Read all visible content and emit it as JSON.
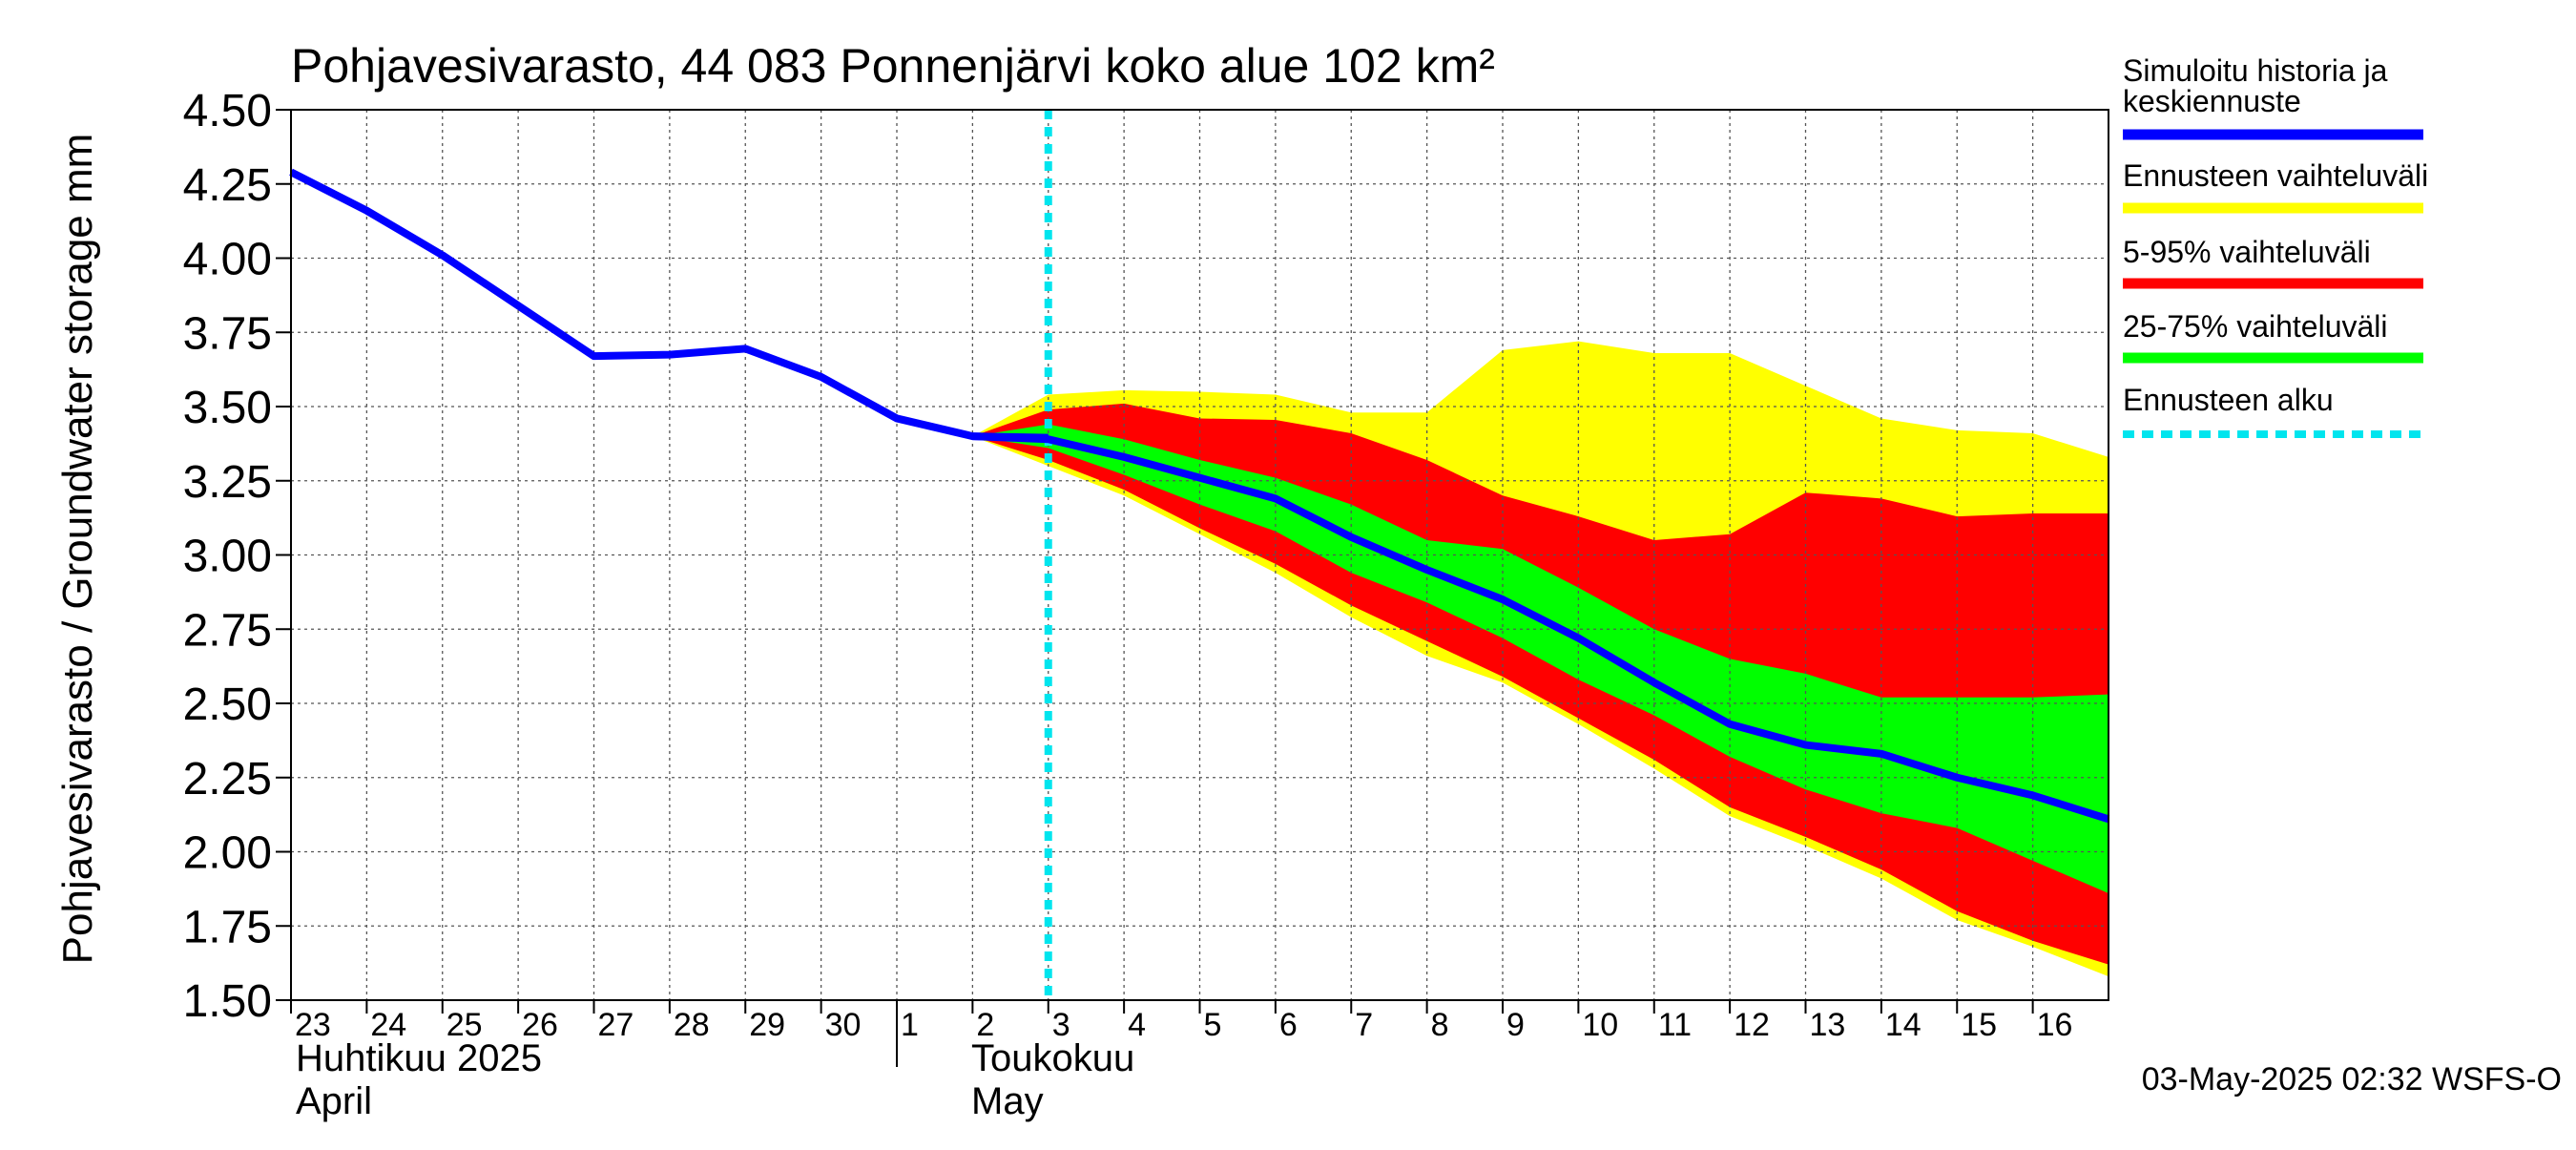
{
  "chart_data": {
    "type": "area",
    "title": "Pohjavesivarasto, 44 083 Ponnenjärvi koko alue 102 km²",
    "ylabel": "Pohjavesivarasto / Groundwater storage   mm",
    "ylim": [
      1.5,
      4.5
    ],
    "yticks": [
      "4.50",
      "4.25",
      "4.00",
      "3.75",
      "3.50",
      "3.25",
      "3.00",
      "2.75",
      "2.50",
      "2.25",
      "2.00",
      "1.75",
      "1.50"
    ],
    "xlim": [
      0,
      24
    ],
    "xticks": [
      "23",
      "24",
      "25",
      "26",
      "27",
      "28",
      "29",
      "30",
      "1",
      "2",
      "3",
      "4",
      "5",
      "6",
      "7",
      "8",
      "9",
      "10",
      "11",
      "12",
      "13",
      "14",
      "15",
      "16"
    ],
    "month_labels": [
      {
        "fi": "Huhtikuu  2025",
        "en": "April"
      },
      {
        "fi": "Toukokuu",
        "en": "May"
      }
    ],
    "forecast_start_day": 10,
    "x_days": [
      9,
      10,
      11,
      12,
      13,
      14,
      15,
      16,
      17,
      18,
      19,
      20,
      21,
      22,
      23,
      24
    ],
    "history": {
      "x": [
        0,
        1,
        2,
        3,
        4,
        5,
        6,
        7,
        8,
        9,
        10
      ],
      "y": [
        4.29,
        4.16,
        4.01,
        3.84,
        3.67,
        3.675,
        3.695,
        3.6,
        3.46,
        3.4,
        3.395
      ]
    },
    "series": [
      {
        "name": "Ennusteen vaihteluväli",
        "color": "#ffff00",
        "upper": [
          3.4,
          3.54,
          3.555,
          3.55,
          3.54,
          3.48,
          3.48,
          3.69,
          3.72,
          3.68,
          3.68,
          3.57,
          3.46,
          3.42,
          3.41,
          3.33
        ],
        "lower": [
          3.4,
          3.3,
          3.2,
          3.07,
          2.94,
          2.79,
          2.66,
          2.57,
          2.43,
          2.28,
          2.12,
          2.02,
          1.91,
          1.77,
          1.68,
          1.58
        ]
      },
      {
        "name": "5-95% vaihteluväli",
        "color": "#ff0000",
        "upper": [
          3.4,
          3.49,
          3.51,
          3.46,
          3.455,
          3.41,
          3.32,
          3.2,
          3.13,
          3.05,
          3.07,
          3.21,
          3.19,
          3.13,
          3.14,
          3.14
        ],
        "lower": [
          3.4,
          3.32,
          3.22,
          3.09,
          2.97,
          2.83,
          2.71,
          2.59,
          2.45,
          2.31,
          2.15,
          2.05,
          1.94,
          1.8,
          1.7,
          1.62
        ]
      },
      {
        "name": "25-75% vaihteluväli",
        "color": "#00ff00",
        "upper": [
          3.4,
          3.44,
          3.39,
          3.32,
          3.26,
          3.17,
          3.05,
          3.02,
          2.89,
          2.75,
          2.65,
          2.6,
          2.52,
          2.52,
          2.52,
          2.53
        ],
        "lower": [
          3.4,
          3.36,
          3.27,
          3.17,
          3.08,
          2.94,
          2.84,
          2.72,
          2.58,
          2.46,
          2.32,
          2.21,
          2.13,
          2.08,
          1.97,
          1.86
        ]
      },
      {
        "name": "Simuloitu historia ja keskiennuste",
        "color": "#0000ff",
        "values": [
          3.4,
          3.39,
          3.33,
          3.26,
          3.19,
          3.06,
          2.95,
          2.85,
          2.72,
          2.57,
          2.43,
          2.36,
          2.33,
          2.25,
          2.19,
          2.11
        ]
      }
    ],
    "legend": [
      {
        "label": "Simuloitu historia ja keskiennuste",
        "color": "#0000ff",
        "style": "solid"
      },
      {
        "label": "Ennusteen vaihteluväli",
        "color": "#ffff00",
        "style": "solid"
      },
      {
        "label": "5-95% vaihteluväli",
        "color": "#ff0000",
        "style": "solid"
      },
      {
        "label": "25-75% vaihteluväli",
        "color": "#00ff00",
        "style": "solid"
      },
      {
        "label": "Ennusteen alku",
        "color": "#00e5ee",
        "style": "dotted"
      }
    ],
    "legend_position": "right",
    "footer": "03-May-2025 02:32 WSFS-O",
    "grid": true
  }
}
